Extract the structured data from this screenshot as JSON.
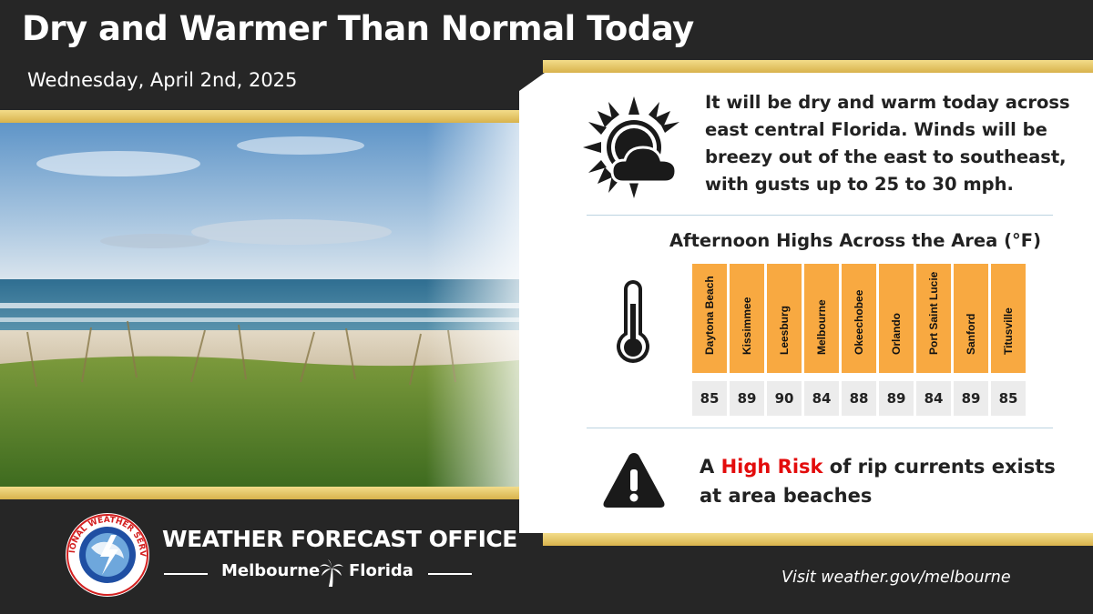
{
  "header": {
    "title": "Dry and Warmer Than Normal Today",
    "date": "Wednesday, April 2nd, 2025"
  },
  "summary": {
    "icon": "partly-sunny-icon",
    "text": "It will be dry and warm today across east central Florida. Winds will be breezy out of the east to southeast, with gusts up to 25 to 30 mph."
  },
  "highs": {
    "title": "Afternoon Highs Across the Area (°F)",
    "icon": "thermometer-icon",
    "cities": [
      {
        "name": "Daytona Beach",
        "temp": "85"
      },
      {
        "name": "Kissimmee",
        "temp": "89"
      },
      {
        "name": "Leesburg",
        "temp": "90"
      },
      {
        "name": "Melbourne",
        "temp": "84"
      },
      {
        "name": "Okeechobee",
        "temp": "88"
      },
      {
        "name": "Orlando",
        "temp": "89"
      },
      {
        "name": "Port Saint Lucie",
        "temp": "84"
      },
      {
        "name": "Sanford",
        "temp": "89"
      },
      {
        "name": "Titusville",
        "temp": "85"
      }
    ]
  },
  "rip_current": {
    "icon": "warning-icon",
    "prefix": "A",
    "risk": "High Risk",
    "suffix": "of rip currents exists at area beaches"
  },
  "footer": {
    "logo_text": "NATIONAL WEATHER SERVICE",
    "office": "WEATHER FORECAST OFFICE",
    "city": "Melbourne",
    "state": "Florida",
    "visit": "Visit weather.gov/melbourne"
  },
  "colors": {
    "background": "#262626",
    "gold": "#e4c466",
    "table_header": "#f8a941",
    "table_value": "#ececec",
    "risk": "#e30c0c"
  }
}
